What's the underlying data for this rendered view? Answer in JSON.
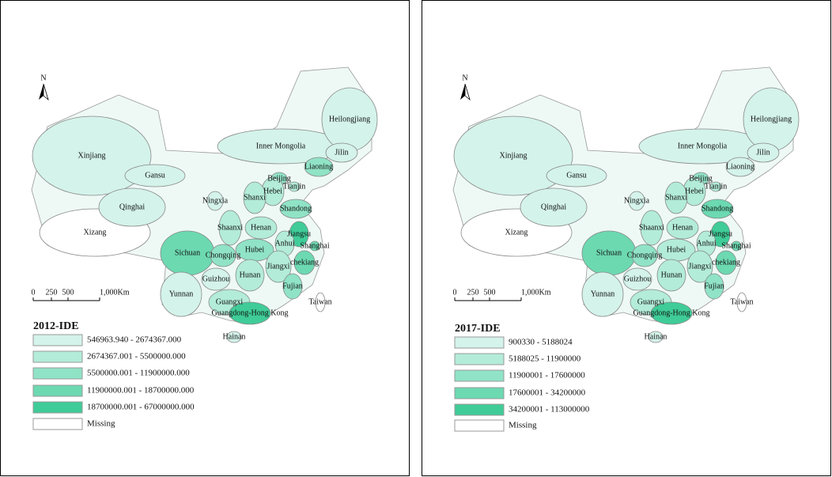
{
  "panels": [
    {
      "title": "2012-IDE",
      "north": "N",
      "scale_labels": [
        "0",
        "250",
        "500",
        "1,000Km"
      ],
      "legend": [
        {
          "label": "546963.940 - 2674367.000",
          "color": "#d4f3ea"
        },
        {
          "label": "2674367.001 - 5500000.000",
          "color": "#b3ecd9"
        },
        {
          "label": "5500000.001 - 11900000.000",
          "color": "#90e3c6"
        },
        {
          "label": "11900000.001 - 18700000.000",
          "color": "#6cd9b1"
        },
        {
          "label": "18700000.001 - 67000000.000",
          "color": "#3fcc98"
        },
        {
          "label": "Missing",
          "color": "#ffffff"
        }
      ],
      "provinces": [
        {
          "name": "Xinjiang",
          "color": "#d4f3ea"
        },
        {
          "name": "Xizang",
          "color": "#ffffff"
        },
        {
          "name": "Qinghai",
          "color": "#d4f3ea"
        },
        {
          "name": "Gansu",
          "color": "#d4f3ea"
        },
        {
          "name": "Inner Mongolia",
          "color": "#d4f3ea"
        },
        {
          "name": "Heilongjiang",
          "color": "#d4f3ea"
        },
        {
          "name": "Jilin",
          "color": "#d4f3ea"
        },
        {
          "name": "Liaoning",
          "color": "#90e3c6"
        },
        {
          "name": "Beijing",
          "color": "#90e3c6"
        },
        {
          "name": "Tianjin",
          "color": "#b3ecd9"
        },
        {
          "name": "Hebei",
          "color": "#b3ecd9"
        },
        {
          "name": "Ningxia",
          "color": "#d4f3ea"
        },
        {
          "name": "Shanxi",
          "color": "#b3ecd9"
        },
        {
          "name": "Shandong",
          "color": "#90e3c6"
        },
        {
          "name": "Henan",
          "color": "#b3ecd9"
        },
        {
          "name": "Shaanxi",
          "color": "#b3ecd9"
        },
        {
          "name": "Jiangsu",
          "color": "#3fcc98"
        },
        {
          "name": "Anhui",
          "color": "#b3ecd9"
        },
        {
          "name": "Shanghai",
          "color": "#6cd9b1"
        },
        {
          "name": "Sichuan",
          "color": "#6cd9b1"
        },
        {
          "name": "Chongqing",
          "color": "#90e3c6"
        },
        {
          "name": "Hubei",
          "color": "#90e3c6"
        },
        {
          "name": "chekiang",
          "color": "#6cd9b1"
        },
        {
          "name": "Jiangxi",
          "color": "#b3ecd9"
        },
        {
          "name": "Hunan",
          "color": "#b3ecd9"
        },
        {
          "name": "Guizhou",
          "color": "#d4f3ea"
        },
        {
          "name": "Fujian",
          "color": "#90e3c6"
        },
        {
          "name": "Yunnan",
          "color": "#d4f3ea"
        },
        {
          "name": "Guangxi",
          "color": "#b3ecd9"
        },
        {
          "name": "Guangdong-Hong Kong",
          "color": "#3fcc98"
        },
        {
          "name": "Taiwan",
          "color": "#ffffff"
        },
        {
          "name": "Hainan",
          "color": "#d4f3ea"
        }
      ]
    },
    {
      "title": "2017-IDE",
      "north": "N",
      "scale_labels": [
        "0",
        "250",
        "500",
        "1,000Km"
      ],
      "legend": [
        {
          "label": "900330 - 5188024",
          "color": "#d4f3ea"
        },
        {
          "label": "5188025 - 11900000",
          "color": "#b3ecd9"
        },
        {
          "label": "11900001 - 17600000",
          "color": "#90e3c6"
        },
        {
          "label": "17600001 - 34200000",
          "color": "#6cd9b1"
        },
        {
          "label": "34200001 - 113000000",
          "color": "#3fcc98"
        },
        {
          "label": "Missing",
          "color": "#ffffff"
        }
      ],
      "provinces": [
        {
          "name": "Xinjiang",
          "color": "#d4f3ea"
        },
        {
          "name": "Xizang",
          "color": "#ffffff"
        },
        {
          "name": "Qinghai",
          "color": "#d4f3ea"
        },
        {
          "name": "Gansu",
          "color": "#d4f3ea"
        },
        {
          "name": "Inner Mongolia",
          "color": "#d4f3ea"
        },
        {
          "name": "Heilongjiang",
          "color": "#d4f3ea"
        },
        {
          "name": "Jilin",
          "color": "#d4f3ea"
        },
        {
          "name": "Liaoning",
          "color": "#d4f3ea"
        },
        {
          "name": "Beijing",
          "color": "#90e3c6"
        },
        {
          "name": "Tianjin",
          "color": "#b3ecd9"
        },
        {
          "name": "Hebei",
          "color": "#b3ecd9"
        },
        {
          "name": "Ningxia",
          "color": "#d4f3ea"
        },
        {
          "name": "Shanxi",
          "color": "#b3ecd9"
        },
        {
          "name": "Shandong",
          "color": "#6cd9b1"
        },
        {
          "name": "Henan",
          "color": "#b3ecd9"
        },
        {
          "name": "Shaanxi",
          "color": "#b3ecd9"
        },
        {
          "name": "Jiangsu",
          "color": "#3fcc98"
        },
        {
          "name": "Anhui",
          "color": "#b3ecd9"
        },
        {
          "name": "Shanghai",
          "color": "#6cd9b1"
        },
        {
          "name": "Sichuan",
          "color": "#6cd9b1"
        },
        {
          "name": "Chongqing",
          "color": "#90e3c6"
        },
        {
          "name": "Hubei",
          "color": "#b3ecd9"
        },
        {
          "name": "chekiang",
          "color": "#6cd9b1"
        },
        {
          "name": "Jiangxi",
          "color": "#b3ecd9"
        },
        {
          "name": "Hunan",
          "color": "#b3ecd9"
        },
        {
          "name": "Guizhou",
          "color": "#d4f3ea"
        },
        {
          "name": "Fujian",
          "color": "#90e3c6"
        },
        {
          "name": "Yunnan",
          "color": "#d4f3ea"
        },
        {
          "name": "Guangxi",
          "color": "#b3ecd9"
        },
        {
          "name": "Guangdong-Hong Kong",
          "color": "#3fcc98"
        },
        {
          "name": "Taiwan",
          "color": "#ffffff"
        },
        {
          "name": "Hainan",
          "color": "#d4f3ea"
        }
      ]
    }
  ]
}
